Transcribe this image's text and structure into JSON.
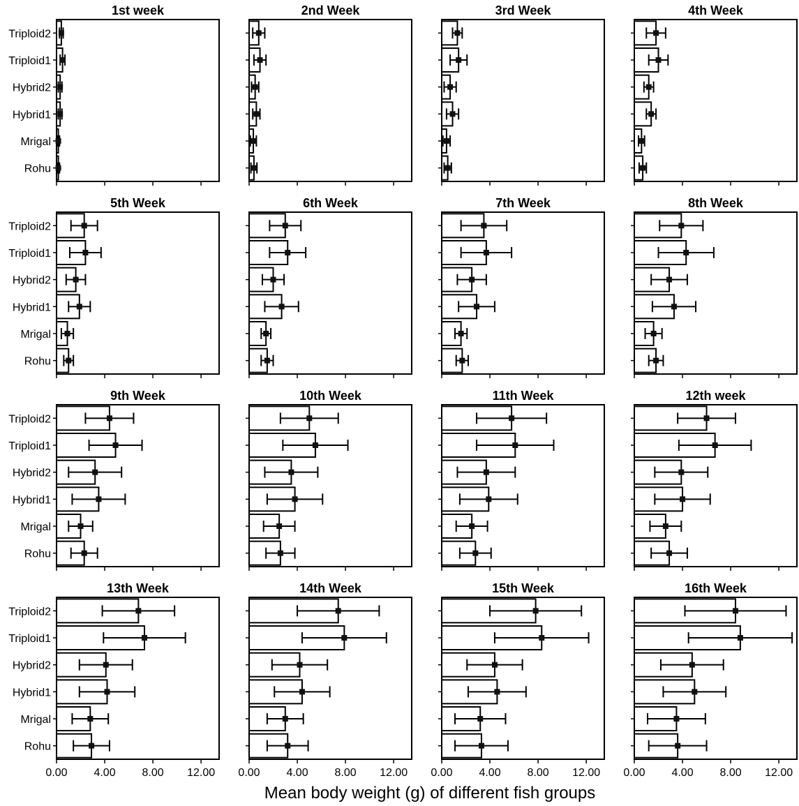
{
  "chart_data": {
    "type": "bar",
    "orientation": "horizontal",
    "categories": [
      "Triploid2",
      "Triploid1",
      "Hybrid2",
      "Hybrid1",
      "Mrigal",
      "Rohu"
    ],
    "xlabel": "Mean body weight (g) of different fish groups",
    "xlim": [
      0,
      13.5
    ],
    "xticks": [
      0,
      4,
      8,
      12
    ],
    "xtick_labels": [
      "0.00",
      "4.00",
      "8.00",
      "12.00"
    ],
    "grid": false,
    "error_bars": true,
    "panels": [
      {
        "title": "1st week",
        "values": [
          0.4,
          0.5,
          0.3,
          0.3,
          0.15,
          0.15
        ],
        "errors": [
          0.15,
          0.2,
          0.15,
          0.15,
          0.1,
          0.1
        ]
      },
      {
        "title": "2nd Week",
        "values": [
          0.8,
          0.9,
          0.5,
          0.6,
          0.35,
          0.4
        ],
        "errors": [
          0.5,
          0.5,
          0.3,
          0.3,
          0.25,
          0.25
        ]
      },
      {
        "title": "3rd Week",
        "values": [
          1.3,
          1.4,
          0.7,
          0.9,
          0.4,
          0.5
        ],
        "errors": [
          0.4,
          0.7,
          0.5,
          0.5,
          0.3,
          0.3
        ]
      },
      {
        "title": "4th Week",
        "values": [
          1.8,
          2.0,
          1.2,
          1.4,
          0.6,
          0.7
        ],
        "errors": [
          0.8,
          0.8,
          0.4,
          0.4,
          0.25,
          0.3
        ]
      },
      {
        "title": "5th Week",
        "values": [
          2.3,
          2.4,
          1.6,
          1.9,
          0.9,
          1.0
        ],
        "errors": [
          1.1,
          1.3,
          0.8,
          0.9,
          0.5,
          0.4
        ]
      },
      {
        "title": "6th Week",
        "values": [
          3.0,
          3.2,
          2.0,
          2.7,
          1.4,
          1.5
        ],
        "errors": [
          1.3,
          1.5,
          0.9,
          1.4,
          0.4,
          0.5
        ]
      },
      {
        "title": "7th Week",
        "values": [
          3.5,
          3.7,
          2.5,
          2.9,
          1.6,
          1.7
        ],
        "errors": [
          1.9,
          2.1,
          1.2,
          1.5,
          0.5,
          0.5
        ]
      },
      {
        "title": "8th Week",
        "values": [
          3.9,
          4.3,
          2.9,
          3.3,
          1.6,
          1.8
        ],
        "errors": [
          1.8,
          2.3,
          1.5,
          1.8,
          0.7,
          0.6
        ]
      },
      {
        "title": "9th Week",
        "values": [
          4.4,
          4.9,
          3.2,
          3.5,
          2.0,
          2.3
        ],
        "errors": [
          2.0,
          2.2,
          2.2,
          2.2,
          1.0,
          1.1
        ]
      },
      {
        "title": "10th Week",
        "values": [
          5.0,
          5.5,
          3.5,
          3.8,
          2.5,
          2.6
        ],
        "errors": [
          2.4,
          2.7,
          2.2,
          2.3,
          1.3,
          1.2
        ]
      },
      {
        "title": "11th Week",
        "values": [
          5.8,
          6.1,
          3.7,
          3.9,
          2.5,
          2.8
        ],
        "errors": [
          2.9,
          3.2,
          2.4,
          2.4,
          1.3,
          1.3
        ]
      },
      {
        "title": "12th week",
        "values": [
          6.0,
          6.7,
          3.9,
          4.0,
          2.6,
          2.9
        ],
        "errors": [
          2.4,
          3.0,
          2.2,
          2.3,
          1.3,
          1.5
        ]
      },
      {
        "title": "13th Week",
        "values": [
          6.8,
          7.3,
          4.1,
          4.2,
          2.8,
          2.9
        ],
        "errors": [
          3.0,
          3.4,
          2.2,
          2.3,
          1.5,
          1.5
        ]
      },
      {
        "title": "14th Week",
        "values": [
          7.4,
          7.9,
          4.2,
          4.4,
          3.0,
          3.2
        ],
        "errors": [
          3.4,
          3.5,
          2.3,
          2.3,
          1.5,
          1.7
        ]
      },
      {
        "title": "15th Week",
        "values": [
          7.8,
          8.3,
          4.4,
          4.6,
          3.2,
          3.3
        ],
        "errors": [
          3.8,
          3.9,
          2.3,
          2.4,
          2.1,
          2.2
        ]
      },
      {
        "title": "16th Week",
        "values": [
          8.4,
          8.8,
          4.8,
          5.0,
          3.5,
          3.6
        ],
        "errors": [
          4.2,
          4.3,
          2.6,
          2.6,
          2.4,
          2.4
        ]
      }
    ]
  }
}
